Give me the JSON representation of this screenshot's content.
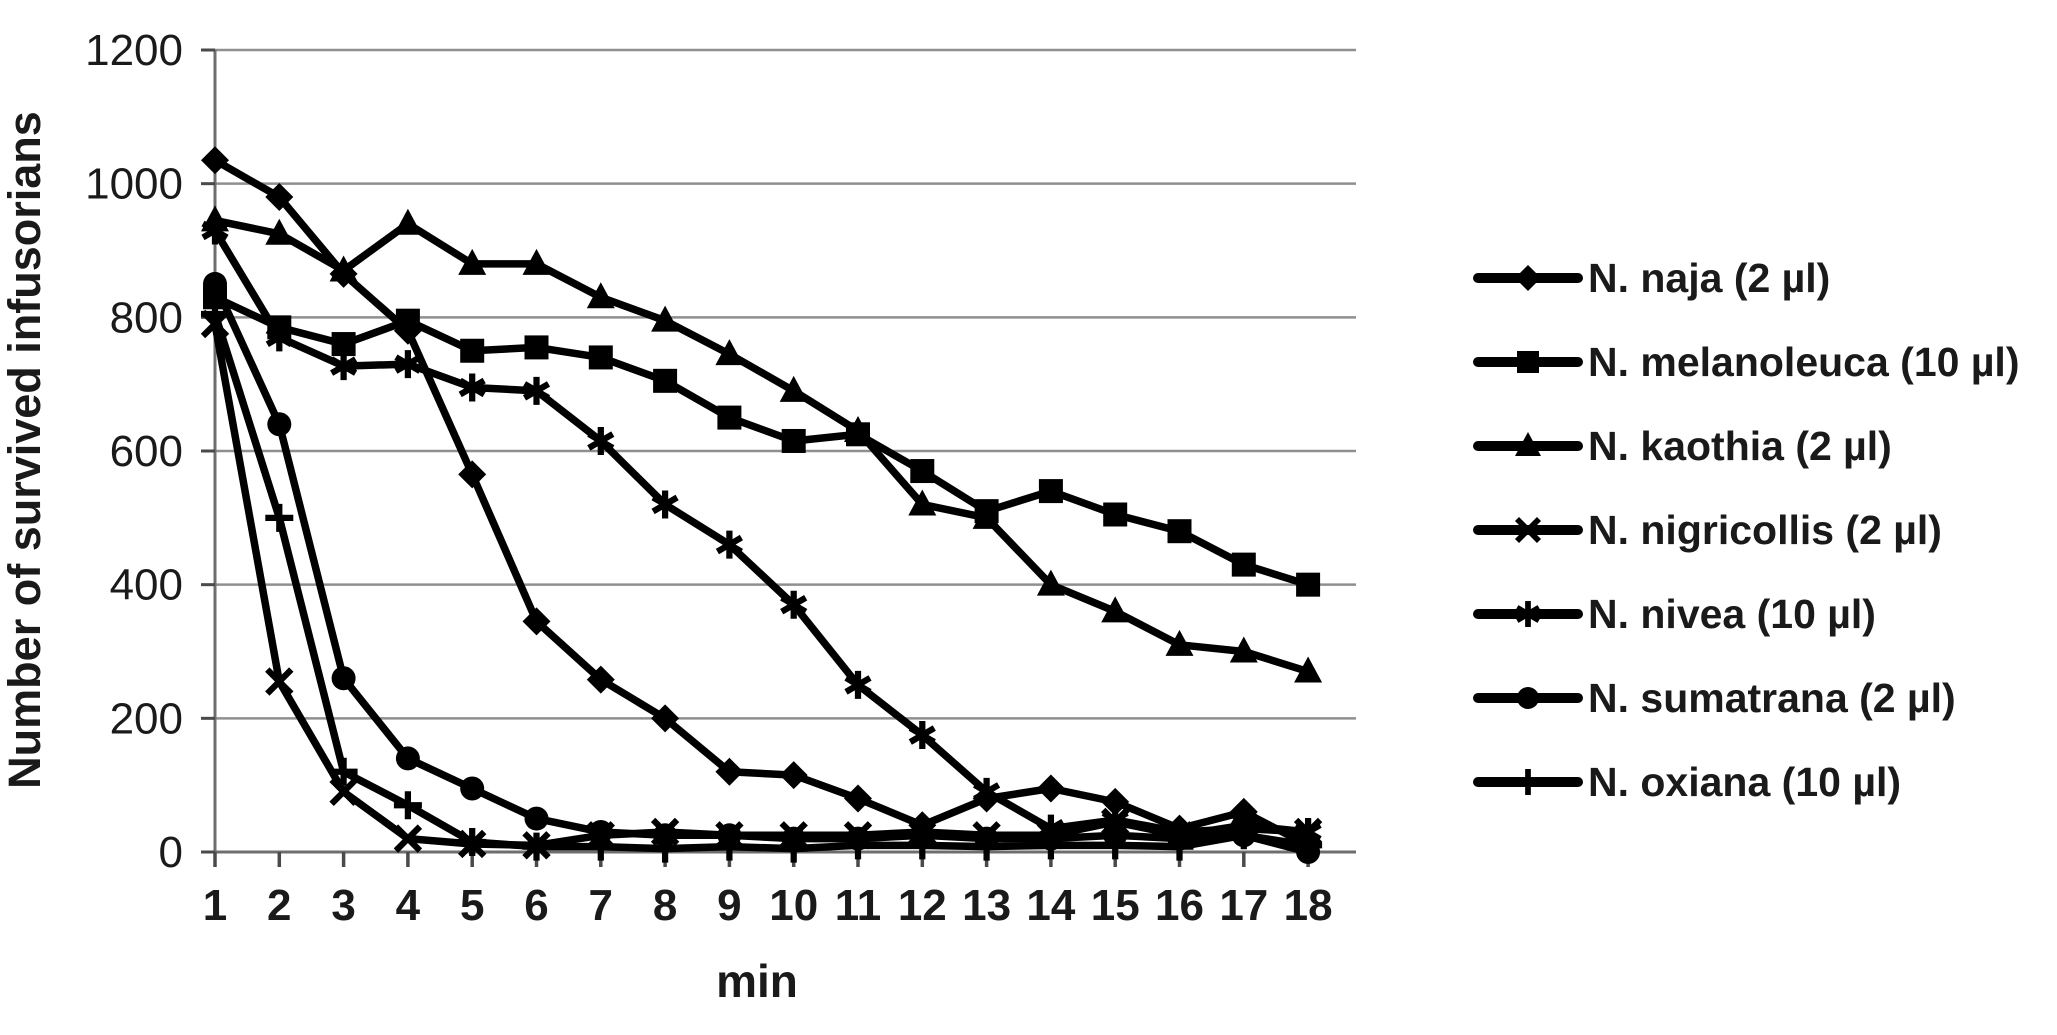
{
  "chart_data": {
    "type": "line",
    "title": "",
    "xlabel": "min",
    "ylabel": "Number of survived infusorians",
    "x": [
      1,
      2,
      3,
      4,
      5,
      6,
      7,
      8,
      9,
      10,
      11,
      12,
      13,
      14,
      15,
      16,
      17,
      18
    ],
    "xlim": [
      1,
      18
    ],
    "ylim": [
      0,
      1200
    ],
    "yticks": [
      0,
      200,
      400,
      600,
      800,
      1000,
      1200
    ],
    "grid": true,
    "legend_position": "right",
    "colors": {
      "series": "#000000",
      "grid": "#8f8f8f",
      "axis": "#6e6e6e",
      "tick": "#4a4a4a",
      "text": "#1a1a1a",
      "background": "#ffffff"
    },
    "series": [
      {
        "name": "N. naja (2 µl)",
        "marker": "diamond",
        "values": [
          1035,
          980,
          865,
          780,
          565,
          345,
          258,
          200,
          120,
          115,
          80,
          40,
          80,
          95,
          75,
          35,
          60,
          10
        ]
      },
      {
        "name": "N. melanoleuca (10 µl)",
        "marker": "square",
        "values": [
          830,
          785,
          760,
          795,
          750,
          755,
          740,
          705,
          650,
          615,
          625,
          570,
          510,
          540,
          505,
          480,
          430,
          400
        ]
      },
      {
        "name": "N. kaothia (2 µl)",
        "marker": "triangle",
        "values": [
          945,
          925,
          870,
          940,
          880,
          880,
          830,
          795,
          745,
          690,
          630,
          520,
          500,
          400,
          360,
          310,
          300,
          270
        ]
      },
      {
        "name": "N. nigricollis (2 µl)",
        "marker": "x",
        "values": [
          790,
          255,
          90,
          20,
          12,
          10,
          25,
          30,
          25,
          25,
          25,
          30,
          25,
          25,
          45,
          25,
          40,
          30
        ]
      },
      {
        "name": "N. nivea (10 µl)",
        "marker": "asterisk",
        "values": [
          930,
          770,
          727,
          730,
          695,
          690,
          615,
          520,
          460,
          370,
          250,
          175,
          90,
          35,
          48,
          30,
          35,
          30
        ]
      },
      {
        "name": "N. sumatrana (2 µl)",
        "marker": "circle",
        "values": [
          850,
          640,
          260,
          140,
          95,
          50,
          30,
          25,
          25,
          20,
          20,
          25,
          20,
          20,
          25,
          20,
          25,
          0
        ]
      },
      {
        "name": "N. oxiana (10 µl)",
        "marker": "plus",
        "values": [
          805,
          500,
          120,
          70,
          15,
          8,
          8,
          5,
          8,
          5,
          10,
          10,
          8,
          10,
          10,
          8,
          25,
          10
        ]
      }
    ]
  }
}
